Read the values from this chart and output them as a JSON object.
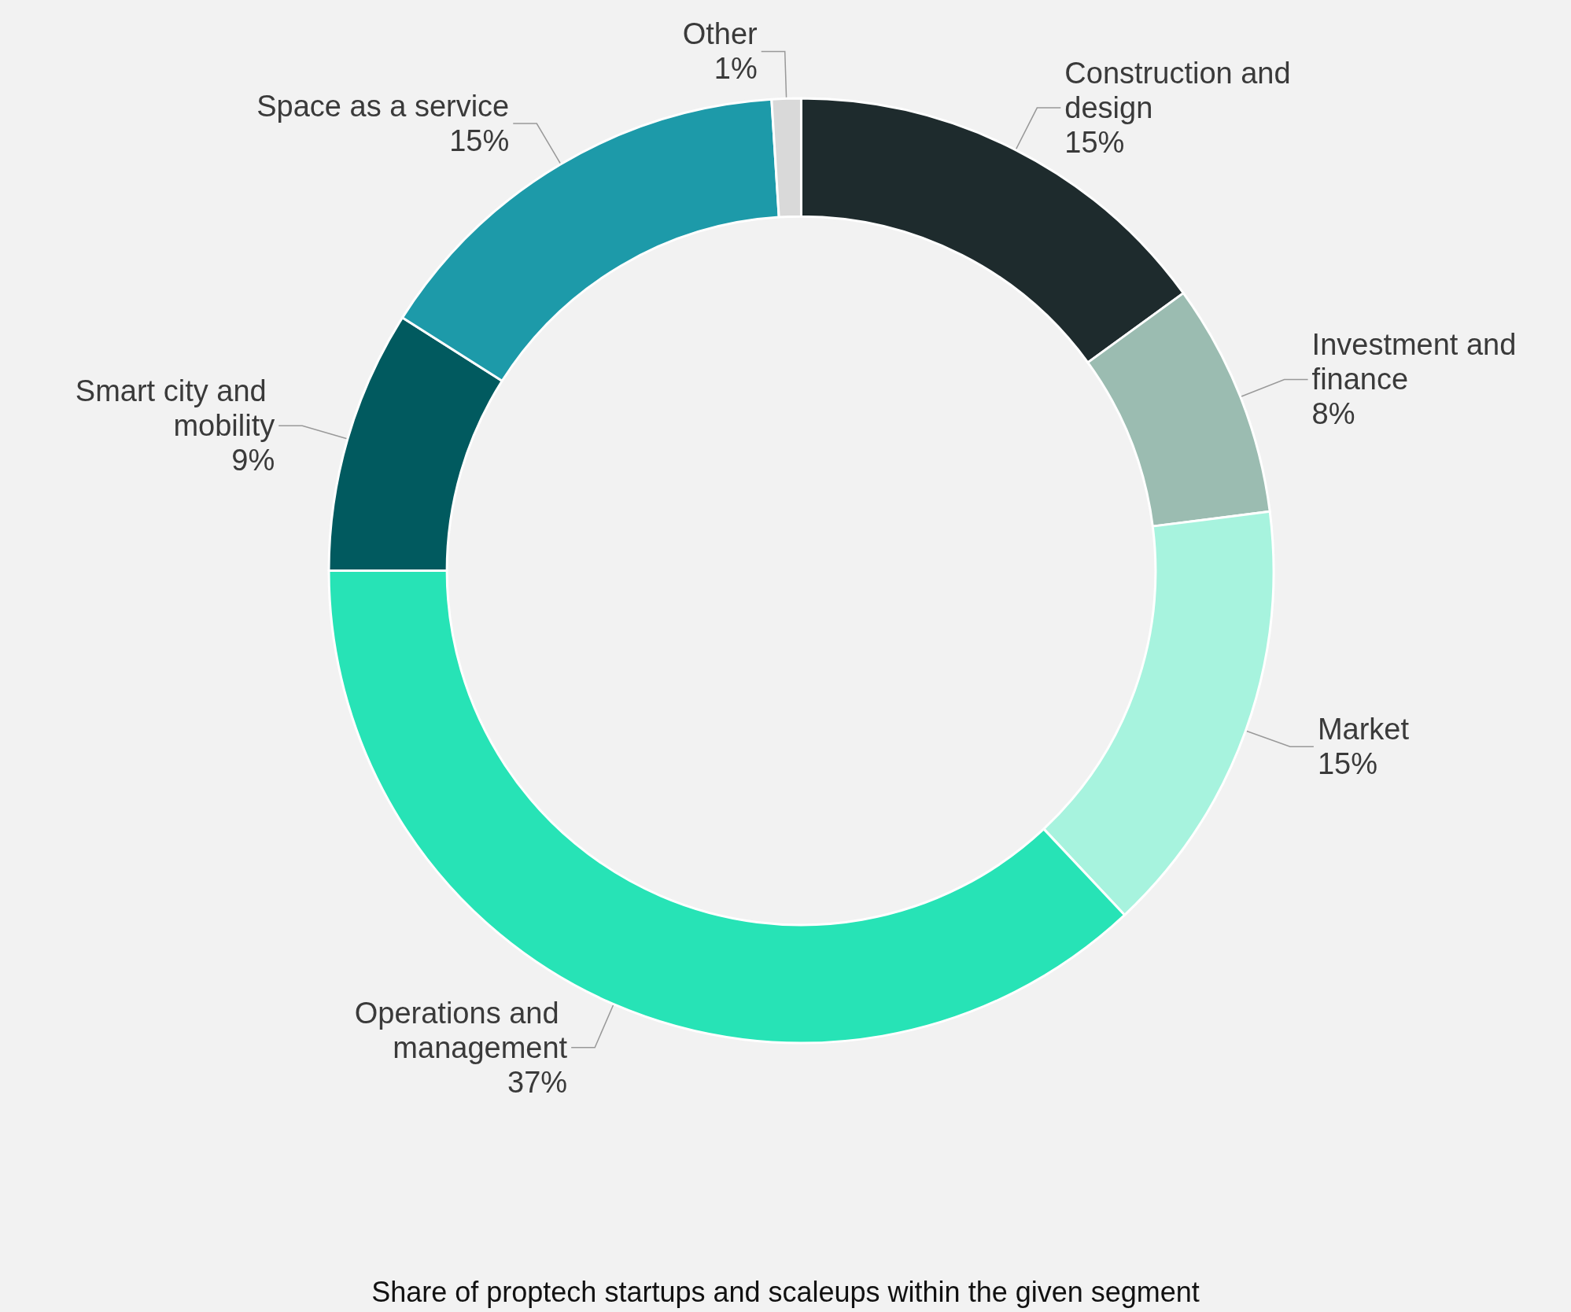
{
  "chart_data": {
    "type": "donut",
    "categories": [
      "Construction and design",
      "Investment and finance",
      "Market",
      "Operations and management",
      "Smart city and mobility",
      "Space as a service",
      "Other"
    ],
    "values": [
      15,
      8,
      15,
      37,
      9,
      15,
      1
    ],
    "value_labels": [
      "15%",
      "8%",
      "15%",
      "37%",
      "9%",
      "15%",
      "1%"
    ],
    "colors": [
      "#1e2b2d",
      "#9bbcb1",
      "#a7f3de",
      "#27e3b6",
      "#015a5f",
      "#1d9aa9",
      "#d9d9d9"
    ],
    "annotations": [
      "Share of proptech startups and scaleups within the given segment"
    ],
    "legend": false
  }
}
